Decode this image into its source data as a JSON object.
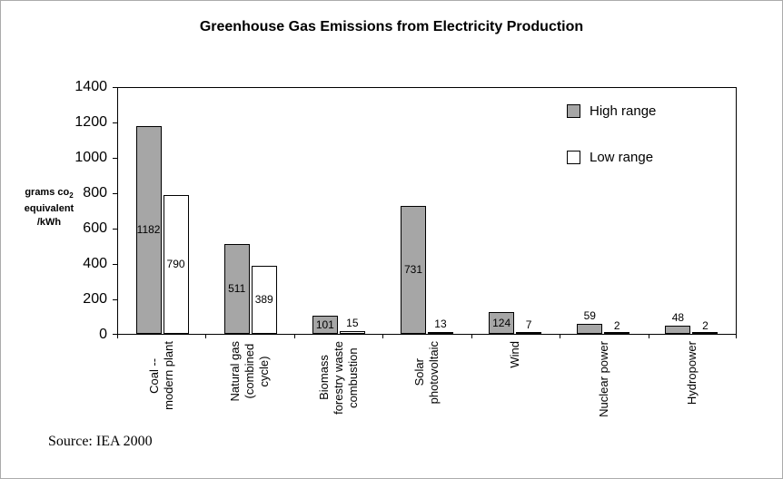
{
  "title": "Greenhouse Gas Emissions from Electricity Production",
  "source": "Source: IEA 2000",
  "y_unit": {
    "line1_pre": "grams co",
    "line1_sub": "2",
    "line2": "equivalent",
    "line3": "/kWh"
  },
  "chart_data": {
    "type": "bar",
    "title": "Greenhouse Gas Emissions from Electricity Production",
    "categories": [
      "Coal --\nmodern plant",
      "Natural gas\n(combined\ncycle)",
      "Biomass\nforestry waste\ncombustion",
      "Solar\nphotovoltaic",
      "Wind",
      "Nuclear power",
      "Hydropower"
    ],
    "series": [
      {
        "name": "High range",
        "color": "#a6a6a6",
        "values": [
          1182,
          511,
          101,
          731,
          124,
          59,
          48
        ]
      },
      {
        "name": "Low range",
        "color": "#ffffff",
        "values": [
          790,
          389,
          15,
          13,
          7,
          2,
          2
        ]
      }
    ],
    "xlabel": "",
    "ylabel": "grams co2 equivalent /kWh",
    "ylim": [
      0,
      1400
    ],
    "yticks": [
      0,
      200,
      400,
      600,
      800,
      1000,
      1200,
      1400
    ],
    "grid": false,
    "bar_value_labels": true,
    "legend": [
      "High range",
      "Low range"
    ],
    "legend_position": "top-right-inside",
    "source": "Source: IEA 2000"
  }
}
